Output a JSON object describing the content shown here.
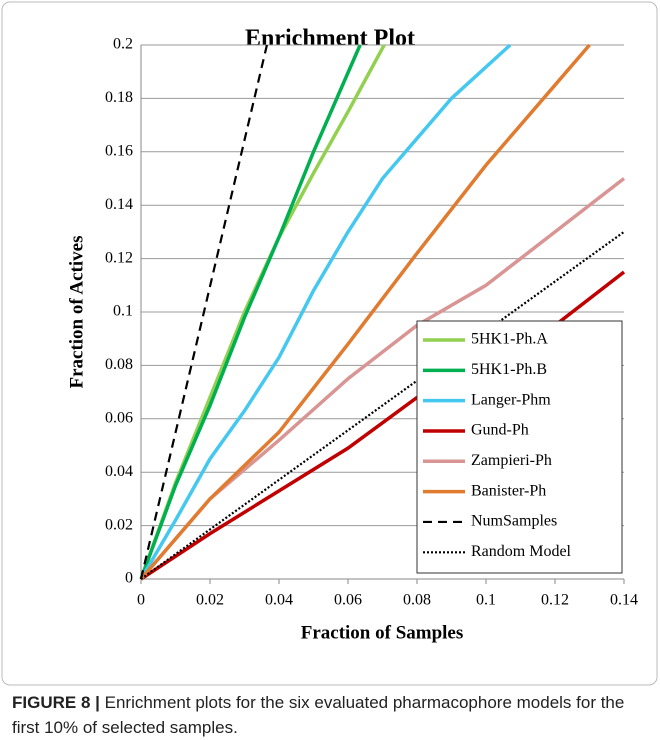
{
  "chart_data": {
    "type": "line",
    "title": "Enrichment Plot",
    "x_label": "Fraction of Samples",
    "y_label": "Fraction of Actives",
    "xlim": [
      0,
      0.14
    ],
    "xticks": [
      0,
      0.02,
      0.04,
      0.06,
      0.08,
      0.1,
      0.12,
      0.14
    ],
    "ylim": [
      0,
      0.2
    ],
    "yticks": [
      0,
      0.02,
      0.04,
      0.06,
      0.08,
      0.1,
      0.12,
      0.14,
      0.16,
      0.18,
      0.2
    ],
    "grid": true,
    "legend": "lower right",
    "series": [
      {
        "name": "5HK1-Ph.A",
        "color": "#92d050",
        "dash": "solid",
        "x": [
          0,
          0.01,
          0.02,
          0.03,
          0.04,
          0.05,
          0.06,
          0.0705
        ],
        "values": [
          0,
          0.036,
          0.068,
          0.1,
          0.128,
          0.152,
          0.175,
          0.2
        ]
      },
      {
        "name": "5HK1-Ph.B",
        "color": "#00b050",
        "dash": "solid",
        "x": [
          0,
          0.01,
          0.02,
          0.03,
          0.04,
          0.05,
          0.0635
        ],
        "values": [
          0,
          0.035,
          0.065,
          0.098,
          0.128,
          0.16,
          0.2
        ]
      },
      {
        "name": "Langer-Phm",
        "color": "#45c8f0",
        "dash": "solid",
        "x": [
          0,
          0.01,
          0.02,
          0.03,
          0.04,
          0.05,
          0.06,
          0.07,
          0.08,
          0.09,
          0.107
        ],
        "values": [
          0,
          0.022,
          0.045,
          0.063,
          0.083,
          0.108,
          0.13,
          0.15,
          0.165,
          0.18,
          0.2
        ]
      },
      {
        "name": "Gund-Ph",
        "color": "#c00000",
        "dash": "solid",
        "x": [
          0,
          0.02,
          0.04,
          0.06,
          0.08,
          0.1,
          0.12,
          0.14
        ],
        "values": [
          0,
          0.017,
          0.033,
          0.049,
          0.068,
          0.082,
          0.095,
          0.115
        ]
      },
      {
        "name": "Zampieri-Ph",
        "color": "#d99594",
        "dash": "solid",
        "x": [
          0,
          0.02,
          0.04,
          0.06,
          0.08,
          0.1,
          0.12,
          0.14
        ],
        "values": [
          0,
          0.03,
          0.052,
          0.075,
          0.095,
          0.11,
          0.13,
          0.15
        ]
      },
      {
        "name": "Banister-Ph",
        "color": "#e07b30",
        "dash": "solid",
        "x": [
          0,
          0.02,
          0.04,
          0.06,
          0.08,
          0.1,
          0.12,
          0.13
        ],
        "values": [
          0,
          0.03,
          0.055,
          0.088,
          0.122,
          0.155,
          0.185,
          0.2
        ]
      },
      {
        "name": "NumSamples",
        "color": "#000000",
        "dash": "dashed",
        "x": [
          0,
          0.0365
        ],
        "values": [
          0,
          0.2
        ]
      },
      {
        "name": "Random Model",
        "color": "#000000",
        "dash": "dotted",
        "x": [
          0,
          0.14
        ],
        "values": [
          0,
          0.13
        ]
      }
    ]
  },
  "caption": {
    "label": "FIGURE 8 |",
    "text": "Enrichment plots for the six evaluated pharmacophore models for the first 10% of selected samples."
  }
}
